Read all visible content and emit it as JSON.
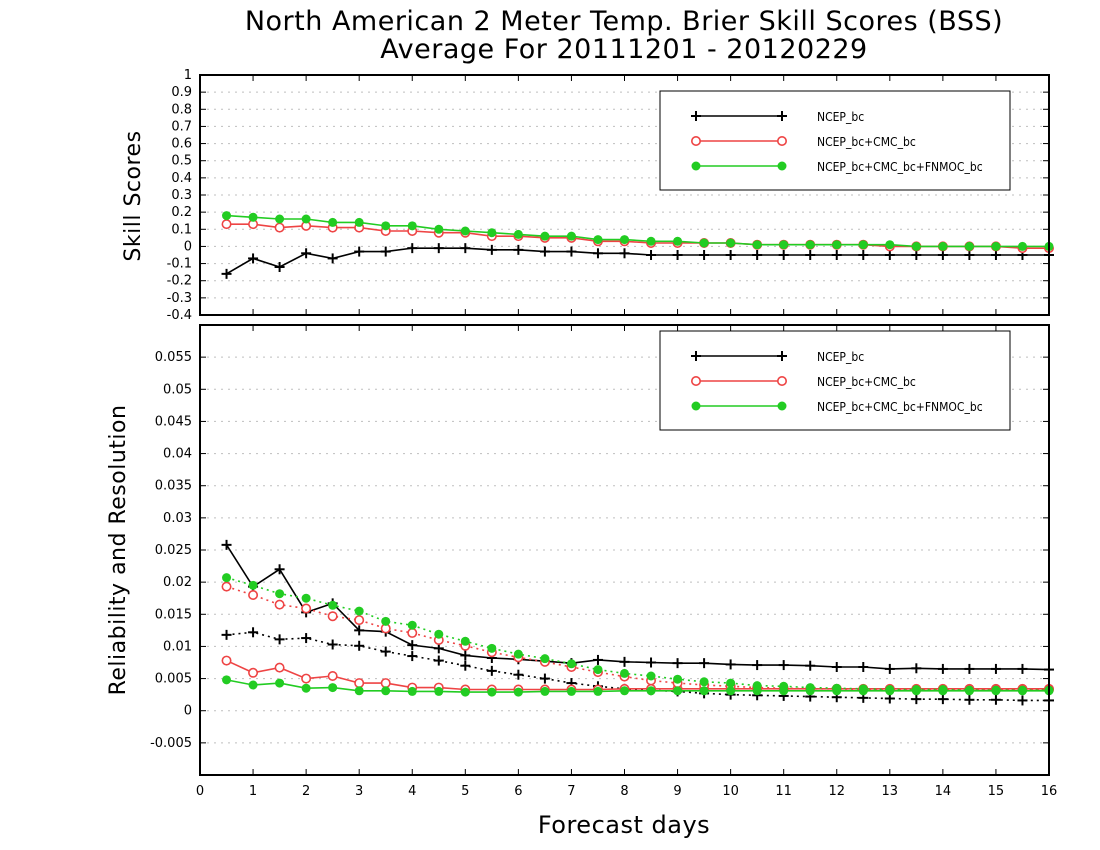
{
  "title_line1": "North American 2 Meter Temp. Brier Skill Scores (BSS)",
  "title_line2": "Average For 20111201 - 20120229",
  "chart_data": [
    {
      "type": "line",
      "ylabel": "Skill Scores",
      "xlabel": "Forecast days",
      "xlim": [
        0,
        16
      ],
      "ylim": [
        -0.4,
        1
      ],
      "xticks": [
        "0",
        "1",
        "2",
        "3",
        "4",
        "5",
        "6",
        "7",
        "8",
        "9",
        "10",
        "11",
        "12",
        "13",
        "14",
        "15",
        "16"
      ],
      "yticks": [
        "-0.4",
        "-0.3",
        "-0.2",
        "-0.1",
        "0",
        "0.1",
        "0.2",
        "0.3",
        "0.4",
        "0.5",
        "0.6",
        "0.7",
        "0.8",
        "0.9",
        "1"
      ],
      "grid": true,
      "legend_position": "top-right",
      "x": [
        0.5,
        1,
        1.5,
        2,
        2.5,
        3,
        3.5,
        4,
        4.5,
        5,
        5.5,
        6,
        6.5,
        7,
        7.5,
        8,
        8.5,
        9,
        9.5,
        10,
        10.5,
        11,
        11.5,
        12,
        12.5,
        13,
        13.5,
        14,
        14.5,
        15,
        15.5,
        16
      ],
      "series": [
        {
          "name": "NCEP_bc",
          "color": "#000000",
          "marker": "plus",
          "dash": "solid",
          "values": [
            -0.16,
            -0.07,
            -0.12,
            -0.04,
            -0.07,
            -0.03,
            -0.03,
            -0.01,
            -0.01,
            -0.01,
            -0.02,
            -0.02,
            -0.03,
            -0.03,
            -0.04,
            -0.04,
            -0.05,
            -0.05,
            -0.05,
            -0.05,
            -0.05,
            -0.05,
            -0.05,
            -0.05,
            -0.05,
            -0.05,
            -0.05,
            -0.05,
            -0.05,
            -0.05,
            -0.05,
            -0.05
          ]
        },
        {
          "name": "NCEP_bc+CMC_bc",
          "color": "#ee4444",
          "marker": "open-circle",
          "dash": "solid",
          "values": [
            0.13,
            0.13,
            0.11,
            0.12,
            0.11,
            0.11,
            0.09,
            0.09,
            0.08,
            0.08,
            0.06,
            0.06,
            0.05,
            0.05,
            0.03,
            0.03,
            0.02,
            0.02,
            0.02,
            0.02,
            0.01,
            0.01,
            0.01,
            0.01,
            0.01,
            0.0,
            0.0,
            0.0,
            0.0,
            0.0,
            -0.01,
            -0.01
          ]
        },
        {
          "name": "NCEP_bc+CMC_bc+FNMOC_bc",
          "color": "#22cc22",
          "marker": "filled-circle",
          "dash": "solid",
          "values": [
            0.18,
            0.17,
            0.16,
            0.16,
            0.14,
            0.14,
            0.12,
            0.12,
            0.1,
            0.09,
            0.08,
            0.07,
            0.06,
            0.06,
            0.04,
            0.04,
            0.03,
            0.03,
            0.02,
            0.02,
            0.01,
            0.01,
            0.01,
            0.01,
            0.01,
            0.01,
            0.0,
            0.0,
            0.0,
            0.0,
            0.0,
            0.0
          ]
        }
      ]
    },
    {
      "type": "line",
      "ylabel": "Reliability and Resolution",
      "xlabel": "Forecast days",
      "xlim": [
        0,
        16
      ],
      "ylim": [
        -0.01,
        0.06
      ],
      "xticks": [
        "0",
        "1",
        "2",
        "3",
        "4",
        "5",
        "6",
        "7",
        "8",
        "9",
        "10",
        "11",
        "12",
        "13",
        "14",
        "15",
        "16"
      ],
      "yticks": [
        "-0.005",
        "0",
        "0.005",
        "0.01",
        "0.015",
        "0.02",
        "0.025",
        "0.03",
        "0.035",
        "0.04",
        "0.045",
        "0.05",
        "0.055"
      ],
      "grid": true,
      "legend_position": "top-right",
      "x": [
        0.5,
        1,
        1.5,
        2,
        2.5,
        3,
        3.5,
        4,
        4.5,
        5,
        5.5,
        6,
        6.5,
        7,
        7.5,
        8,
        8.5,
        9,
        9.5,
        10,
        10.5,
        11,
        11.5,
        12,
        12.5,
        13,
        13.5,
        14,
        14.5,
        15,
        15.5,
        16
      ],
      "legend": [
        {
          "name": "NCEP_bc",
          "color": "#000000",
          "marker": "plus"
        },
        {
          "name": "NCEP_bc+CMC_bc",
          "color": "#ee4444",
          "marker": "open-circle"
        },
        {
          "name": "NCEP_bc+CMC_bc+FNMOC_bc",
          "color": "#22cc22",
          "marker": "filled-circle"
        }
      ],
      "series": [
        {
          "color": "#000000",
          "marker": "plus",
          "dash": "solid",
          "values": [
            0.0258,
            0.0193,
            0.022,
            0.0153,
            0.0167,
            0.0125,
            0.0123,
            0.0102,
            0.0097,
            0.0086,
            0.0082,
            0.008,
            0.0077,
            0.0074,
            0.0079,
            0.0076,
            0.0075,
            0.0074,
            0.0074,
            0.0072,
            0.0071,
            0.0071,
            0.007,
            0.0068,
            0.0068,
            0.0065,
            0.0066,
            0.0065,
            0.0065,
            0.0065,
            0.0065,
            0.0064
          ]
        },
        {
          "color": "#000000",
          "marker": "plus",
          "dash": "dotted",
          "values": [
            0.0118,
            0.0122,
            0.0111,
            0.0113,
            0.0103,
            0.0101,
            0.0092,
            0.0085,
            0.0078,
            0.007,
            0.0062,
            0.0056,
            0.005,
            0.0043,
            0.0038,
            0.0034,
            0.0032,
            0.003,
            0.0027,
            0.0025,
            0.0024,
            0.0023,
            0.0022,
            0.0021,
            0.002,
            0.0019,
            0.0018,
            0.0018,
            0.0017,
            0.0017,
            0.0016,
            0.0016
          ]
        },
        {
          "color": "#ee4444",
          "marker": "open-circle",
          "dash": "solid",
          "values": [
            0.0078,
            0.0059,
            0.0067,
            0.005,
            0.0054,
            0.0043,
            0.0043,
            0.0036,
            0.0036,
            0.0033,
            0.0033,
            0.0033,
            0.0033,
            0.0033,
            0.0033,
            0.0034,
            0.0034,
            0.0034,
            0.0034,
            0.0034,
            0.0034,
            0.0034,
            0.0034,
            0.0034,
            0.0034,
            0.0034,
            0.0034,
            0.0034,
            0.0034,
            0.0034,
            0.0034,
            0.0034
          ]
        },
        {
          "color": "#ee4444",
          "marker": "open-circle",
          "dash": "dotted",
          "values": [
            0.0193,
            0.018,
            0.0165,
            0.0159,
            0.0147,
            0.0141,
            0.0128,
            0.0121,
            0.011,
            0.0101,
            0.0091,
            0.0083,
            0.0076,
            0.0068,
            0.006,
            0.0053,
            0.0047,
            0.0043,
            0.004,
            0.0038,
            0.0036,
            0.0035,
            0.0034,
            0.0034,
            0.0033,
            0.0033,
            0.0033,
            0.0033,
            0.0033,
            0.0033,
            0.0033,
            0.0033
          ]
        },
        {
          "color": "#22cc22",
          "marker": "filled-circle",
          "dash": "solid",
          "values": [
            0.0048,
            0.004,
            0.0043,
            0.0035,
            0.0036,
            0.0031,
            0.0031,
            0.003,
            0.003,
            0.0029,
            0.0029,
            0.0029,
            0.003,
            0.003,
            0.003,
            0.0031,
            0.0031,
            0.0031,
            0.0031,
            0.0031,
            0.0031,
            0.0031,
            0.0031,
            0.0031,
            0.0031,
            0.0031,
            0.0031,
            0.0031,
            0.0031,
            0.0031,
            0.0031,
            0.0031
          ]
        },
        {
          "color": "#22cc22",
          "marker": "filled-circle",
          "dash": "dotted",
          "values": [
            0.0207,
            0.0195,
            0.0182,
            0.0175,
            0.0164,
            0.0155,
            0.0139,
            0.0133,
            0.0119,
            0.0108,
            0.0097,
            0.0088,
            0.0081,
            0.0073,
            0.0064,
            0.0058,
            0.0054,
            0.0049,
            0.0045,
            0.0043,
            0.0039,
            0.0038,
            0.0036,
            0.0035,
            0.0034,
            0.0033,
            0.0033,
            0.0033,
            0.0032,
            0.0032,
            0.0032,
            0.0032
          ]
        }
      ]
    }
  ]
}
